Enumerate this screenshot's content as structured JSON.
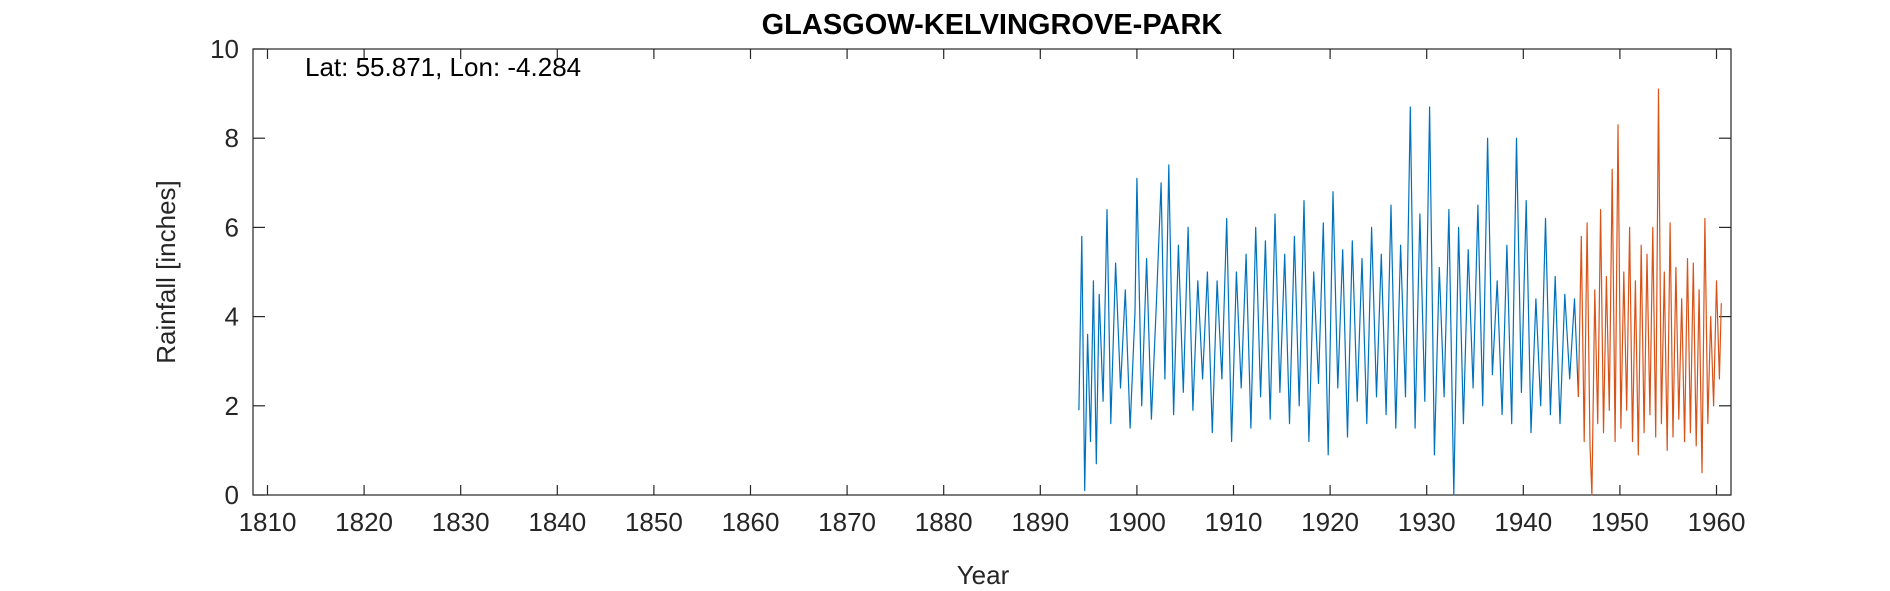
{
  "chart_data": {
    "type": "line",
    "title": "GLASGOW-KELVINGROVE-PARK",
    "xlabel": "Year",
    "ylabel": "Rainfall [inches]",
    "annotation": "Lat: 55.871, Lon: -4.284",
    "xlim": [
      1808.5,
      1961.5
    ],
    "ylim": [
      0,
      10
    ],
    "xticks": [
      1810,
      1820,
      1830,
      1840,
      1850,
      1860,
      1870,
      1880,
      1890,
      1900,
      1910,
      1920,
      1930,
      1940,
      1950,
      1960
    ],
    "yticks": [
      0,
      2,
      4,
      6,
      8,
      10
    ],
    "grid": false,
    "series": [
      {
        "color": "#0072BD",
        "x": [
          1894.0,
          1894.3,
          1894.6,
          1894.9,
          1895.2,
          1895.5,
          1895.8,
          1896.1,
          1896.5,
          1896.9,
          1897.3,
          1897.8,
          1898.3,
          1898.8,
          1899.3,
          1899.8,
          1900.0,
          1900.5,
          1901.0,
          1901.5,
          1902.0,
          1902.5,
          1902.9,
          1903.3,
          1903.8,
          1904.3,
          1904.8,
          1905.3,
          1905.8,
          1906.3,
          1906.8,
          1907.3,
          1907.8,
          1908.3,
          1908.8,
          1909.3,
          1909.8,
          1910.3,
          1910.8,
          1911.3,
          1911.8,
          1912.3,
          1912.8,
          1913.3,
          1913.8,
          1914.3,
          1914.8,
          1915.3,
          1915.8,
          1916.3,
          1916.8,
          1917.3,
          1917.8,
          1918.3,
          1918.8,
          1919.3,
          1919.8,
          1920.3,
          1920.8,
          1921.3,
          1921.8,
          1922.3,
          1922.8,
          1923.3,
          1923.8,
          1924.3,
          1924.8,
          1925.3,
          1925.8,
          1926.3,
          1926.8,
          1927.3,
          1927.8,
          1928.3,
          1928.8,
          1929.3,
          1929.8,
          1930.3,
          1930.8,
          1931.3,
          1931.8,
          1932.3,
          1932.8,
          1933.3,
          1933.8,
          1934.3,
          1934.8,
          1935.3,
          1935.8,
          1936.3,
          1936.8,
          1937.3,
          1937.8,
          1938.3,
          1938.8,
          1939.3,
          1939.8,
          1940.3,
          1940.8,
          1941.3,
          1941.8,
          1942.3,
          1942.8,
          1943.3,
          1943.8,
          1944.3,
          1944.8,
          1945.3,
          1945.7
        ],
        "y": [
          1.9,
          5.8,
          0.1,
          3.6,
          1.2,
          4.8,
          0.7,
          4.5,
          2.1,
          6.4,
          1.6,
          5.2,
          2.4,
          4.6,
          1.5,
          4.1,
          7.1,
          2.0,
          5.3,
          1.7,
          4.2,
          7.0,
          2.6,
          7.4,
          1.8,
          5.6,
          2.3,
          6.0,
          1.9,
          4.8,
          2.6,
          5.0,
          1.4,
          4.8,
          2.6,
          6.2,
          1.2,
          5.0,
          2.4,
          5.4,
          1.5,
          6.0,
          2.2,
          5.7,
          1.7,
          6.3,
          2.3,
          5.4,
          1.6,
          5.8,
          2.0,
          6.6,
          1.2,
          5.0,
          2.5,
          6.1,
          0.9,
          6.8,
          2.4,
          5.5,
          1.3,
          5.7,
          2.1,
          5.3,
          1.6,
          6.0,
          2.2,
          5.4,
          1.8,
          6.5,
          1.5,
          5.6,
          2.2,
          8.7,
          1.5,
          6.3,
          2.1,
          8.7,
          0.9,
          5.1,
          2.2,
          6.4,
          0.0,
          6.0,
          1.6,
          5.5,
          2.4,
          6.5,
          2.0,
          8.0,
          2.7,
          4.8,
          1.8,
          5.6,
          1.6,
          8.0,
          2.3,
          6.6,
          1.4,
          4.4,
          2.0,
          6.2,
          1.8,
          4.9,
          1.6,
          4.5,
          2.6,
          4.4,
          2.2
        ]
      },
      {
        "color": "#D95319",
        "x": [
          1945.7,
          1946.0,
          1946.3,
          1946.6,
          1946.9,
          1947.1,
          1947.4,
          1947.7,
          1948.0,
          1948.3,
          1948.6,
          1948.9,
          1949.2,
          1949.5,
          1949.8,
          1950.1,
          1950.4,
          1950.7,
          1951.0,
          1951.3,
          1951.6,
          1951.9,
          1952.2,
          1952.5,
          1952.8,
          1953.1,
          1953.4,
          1953.7,
          1954.0,
          1954.3,
          1954.6,
          1954.9,
          1955.2,
          1955.5,
          1955.8,
          1956.1,
          1956.4,
          1956.7,
          1957.0,
          1957.3,
          1957.6,
          1957.9,
          1958.2,
          1958.5,
          1958.8,
          1959.1,
          1959.4,
          1959.7,
          1960.0,
          1960.3,
          1960.5
        ],
        "y": [
          2.2,
          5.8,
          1.2,
          6.1,
          1.1,
          0.0,
          4.6,
          1.6,
          6.4,
          1.4,
          4.9,
          1.9,
          7.3,
          1.2,
          8.3,
          1.5,
          5.0,
          1.9,
          6.0,
          1.2,
          4.8,
          0.9,
          5.6,
          1.4,
          5.4,
          1.8,
          6.0,
          1.3,
          9.1,
          1.6,
          5.0,
          1.0,
          6.1,
          1.3,
          5.1,
          1.7,
          4.4,
          1.2,
          5.3,
          1.4,
          5.2,
          1.1,
          4.6,
          0.5,
          6.2,
          1.6,
          4.0,
          2.0,
          4.8,
          2.6,
          4.3
        ]
      }
    ]
  }
}
